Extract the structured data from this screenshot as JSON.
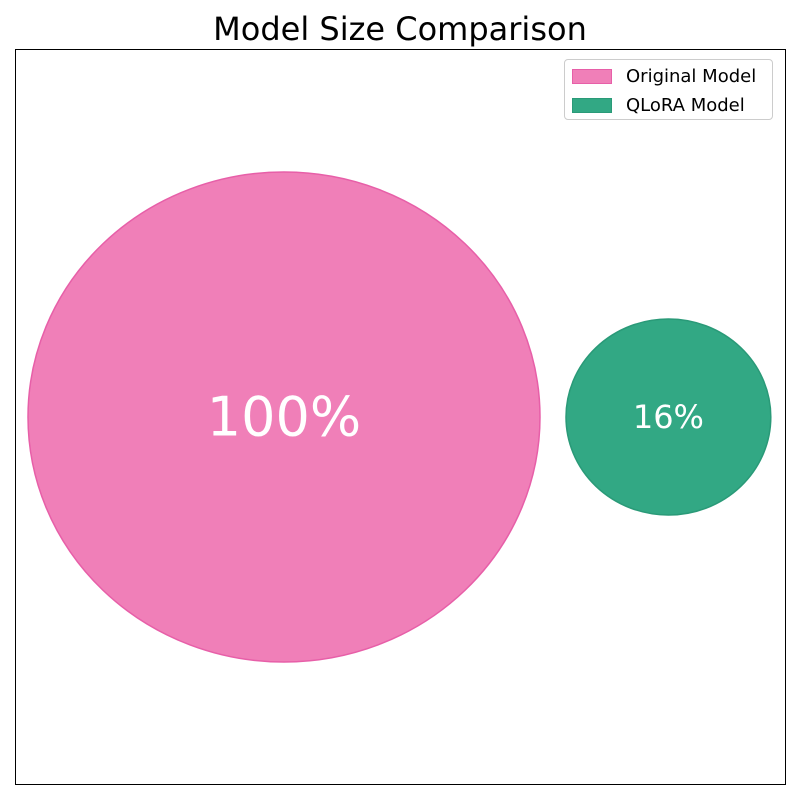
{
  "chart_data": {
    "type": "bubble",
    "title": "Model Size Comparison",
    "xlabel": "",
    "ylabel": "",
    "grid": false,
    "axes_ticks": false,
    "legend_position": "top-right",
    "series": [
      {
        "name": "Original Model",
        "value": 100,
        "label": "100%",
        "color": "#f07fb8",
        "edge_color": "#e75fa8"
      },
      {
        "name": "QLoRA Model",
        "value": 16,
        "label": "16%",
        "color": "#32a884",
        "edge_color": "#2a9a78"
      }
    ]
  }
}
